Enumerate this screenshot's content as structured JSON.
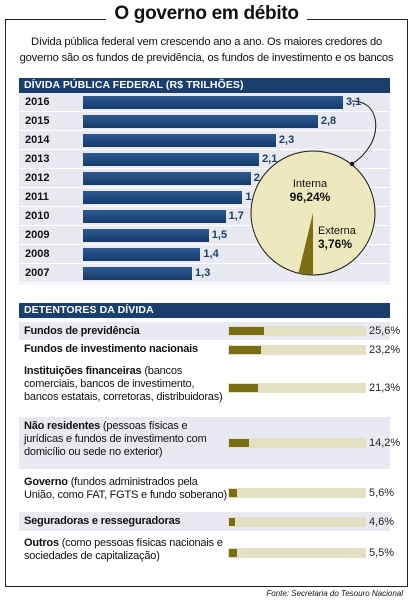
{
  "header": {
    "title": "O governo em débito",
    "subtitle_line1": "Dívida pública federal vem crescendo ano a ano. Os maiores credores do",
    "subtitle_line2": "governo são os fundos de previdência, os fundos de investimento e os bancos"
  },
  "debt_section_title": "DÍVIDA PÚBLICA FEDERAL (R$ TRILHÕES)",
  "holders_section_title": "DETENTORES DA DÍVIDA",
  "source": "Fonte: Secretaria do Tesouro Nacional",
  "colors": {
    "navy": "#1a3e6e",
    "olive": "#7a6d14",
    "pie_cream": "#eee8bf"
  },
  "chart_data": [
    {
      "type": "bar",
      "title": "DÍVIDA PÚBLICA FEDERAL (R$ TRILHÕES)",
      "orientation": "horizontal",
      "categories": [
        "2016",
        "2015",
        "2014",
        "2013",
        "2012",
        "2011",
        "2010",
        "2009",
        "2008",
        "2007"
      ],
      "values": [
        3.1,
        2.8,
        2.3,
        2.1,
        2.0,
        1.9,
        1.7,
        1.5,
        1.4,
        1.3
      ],
      "labels": [
        "3,1",
        "2,8",
        "2,3",
        "2,1",
        "2",
        "1,9",
        "1,7",
        "1,5",
        "1,4",
        "1,3"
      ]
    },
    {
      "type": "pie",
      "categories": [
        "Interna",
        "Externa"
      ],
      "values": [
        96.24,
        3.76
      ],
      "labels": [
        "96,24%",
        "3,76%"
      ]
    },
    {
      "type": "bar",
      "title": "DETENTORES DA DÍVIDA",
      "orientation": "horizontal",
      "categories": [
        "Fundos de previdência",
        "Fundos de investimento nacionais",
        "Instituições financeiras",
        "Não residentes",
        "Governo",
        "Seguradoras e resseguradoras",
        "Outros"
      ],
      "values": [
        25.6,
        23.2,
        21.3,
        14.2,
        5.6,
        4.6,
        5.5
      ],
      "labels": [
        "25,6%",
        "23,2%",
        "21,3%",
        "14,2%",
        "5,6%",
        "4,6%",
        "5,5%"
      ]
    }
  ],
  "holders": [
    {
      "name": "Fundos de previdência",
      "detail": ""
    },
    {
      "name": "Fundos de investimento nacionais",
      "detail": ""
    },
    {
      "name": "Instituições financeiras",
      "detail": " (bancos comerciais, bancos de investimento, bancos estatais, corretoras, distribuidoras)"
    },
    {
      "name": "Não residentes",
      "detail": " (pessoas físicas e jurídicas e fundos de investimento com domicílio ou sede no exterior)"
    },
    {
      "name": "Governo",
      "detail": " (fundos administrados pela União, como FAT, FGTS e fundo soberano)"
    },
    {
      "name": "Seguradoras e resseguradoras",
      "detail": ""
    },
    {
      "name": "Outros",
      "detail": " (como pessoas físicas nacionais e sociedades de capitalização)"
    }
  ]
}
